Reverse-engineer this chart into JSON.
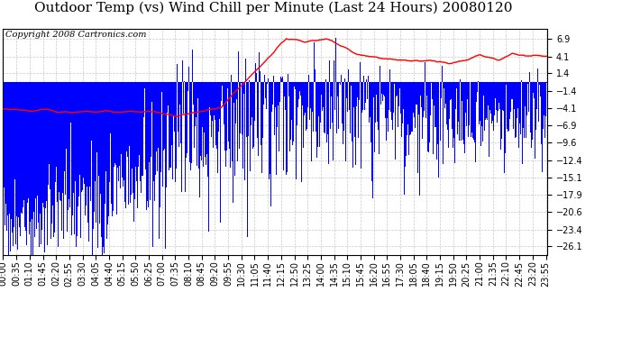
{
  "title": "Outdoor Temp (vs) Wind Chill per Minute (Last 24 Hours) 20080120",
  "copyright": "Copyright 2008 Cartronics.com",
  "yticks": [
    6.9,
    4.1,
    1.4,
    -1.4,
    -4.1,
    -6.9,
    -9.6,
    -12.4,
    -15.1,
    -17.9,
    -20.6,
    -23.4,
    -26.1
  ],
  "ylim": [
    -27.5,
    8.5
  ],
  "background_color": "#ffffff",
  "plot_bg_color": "#ffffff",
  "grid_color": "#c8c8c8",
  "blue_color": "#0000ff",
  "red_color": "#ff0000",
  "title_fontsize": 11,
  "copyright_fontsize": 7,
  "tick_fontsize": 7,
  "num_minutes": 1440,
  "xtick_interval": 35,
  "xtick_labels": [
    "00:00",
    "00:35",
    "01:10",
    "01:45",
    "02:20",
    "02:55",
    "03:30",
    "04:05",
    "04:40",
    "05:15",
    "05:50",
    "06:25",
    "07:00",
    "07:35",
    "08:10",
    "08:45",
    "09:20",
    "09:55",
    "10:30",
    "11:05",
    "11:40",
    "12:15",
    "12:50",
    "13:25",
    "14:00",
    "14:35",
    "15:10",
    "15:45",
    "16:20",
    "16:55",
    "17:30",
    "18:05",
    "18:40",
    "19:15",
    "19:50",
    "20:25",
    "21:00",
    "21:35",
    "22:10",
    "22:45",
    "23:20",
    "23:55"
  ]
}
